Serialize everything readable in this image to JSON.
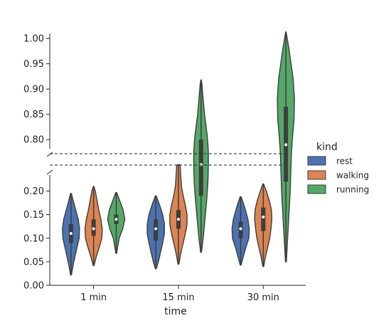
{
  "chart_data": {
    "type": "violin",
    "categories": [
      "1 min",
      "15 min",
      "30 min"
    ],
    "xlabel": "time",
    "ylabel": "",
    "legend_title": "kind",
    "legend_position": "right",
    "broken_y_axis": true,
    "axes": {
      "upper": {
        "ylim": [
          0.775,
          1.01
        ],
        "ticks": [
          "0.80",
          "0.85",
          "0.90",
          "0.95",
          "1.00"
        ]
      },
      "lower": {
        "ylim": [
          0.0,
          0.225
        ],
        "ticks": [
          "0.00",
          "0.05",
          "0.10",
          "0.15",
          "0.20"
        ]
      }
    },
    "series": [
      {
        "name": "rest",
        "color": "#4c72b0",
        "violins": [
          {
            "category": "1 min",
            "min": 0.022,
            "max": 0.195,
            "q1": 0.09,
            "median": 0.11,
            "q3": 0.13,
            "profile": [
              [
                0.022,
                0.05
              ],
              [
                0.04,
                0.22
              ],
              [
                0.06,
                0.45
              ],
              [
                0.08,
                0.7
              ],
              [
                0.1,
                0.95
              ],
              [
                0.12,
                1.0
              ],
              [
                0.14,
                0.85
              ],
              [
                0.16,
                0.55
              ],
              [
                0.18,
                0.25
              ],
              [
                0.195,
                0.05
              ]
            ]
          },
          {
            "category": "15 min",
            "min": 0.035,
            "max": 0.19,
            "q1": 0.095,
            "median": 0.12,
            "q3": 0.14,
            "profile": [
              [
                0.035,
                0.05
              ],
              [
                0.05,
                0.3
              ],
              [
                0.07,
                0.55
              ],
              [
                0.09,
                0.8
              ],
              [
                0.11,
                1.0
              ],
              [
                0.13,
                1.0
              ],
              [
                0.15,
                0.8
              ],
              [
                0.17,
                0.45
              ],
              [
                0.19,
                0.05
              ]
            ]
          },
          {
            "category": "30 min",
            "min": 0.043,
            "max": 0.188,
            "q1": 0.1,
            "median": 0.12,
            "q3": 0.135,
            "profile": [
              [
                0.043,
                0.05
              ],
              [
                0.06,
                0.3
              ],
              [
                0.08,
                0.6
              ],
              [
                0.1,
                0.95
              ],
              [
                0.12,
                1.0
              ],
              [
                0.14,
                0.85
              ],
              [
                0.16,
                0.55
              ],
              [
                0.175,
                0.3
              ],
              [
                0.188,
                0.05
              ]
            ]
          }
        ]
      },
      {
        "name": "walking",
        "color": "#dd8452",
        "violins": [
          {
            "category": "1 min",
            "min": 0.042,
            "max": 0.21,
            "q1": 0.105,
            "median": 0.12,
            "q3": 0.14,
            "profile": [
              [
                0.042,
                0.05
              ],
              [
                0.06,
                0.3
              ],
              [
                0.08,
                0.65
              ],
              [
                0.1,
                0.95
              ],
              [
                0.12,
                1.0
              ],
              [
                0.14,
                0.85
              ],
              [
                0.16,
                0.6
              ],
              [
                0.18,
                0.4
              ],
              [
                0.2,
                0.2
              ],
              [
                0.21,
                0.03
              ]
            ]
          },
          {
            "category": "15 min",
            "min": 0.045,
            "max": 0.25,
            "q1": 0.12,
            "median": 0.14,
            "q3": 0.16,
            "profile": [
              [
                0.045,
                0.05
              ],
              [
                0.07,
                0.3
              ],
              [
                0.09,
                0.55
              ],
              [
                0.11,
                0.8
              ],
              [
                0.13,
                1.0
              ],
              [
                0.15,
                1.0
              ],
              [
                0.17,
                0.8
              ],
              [
                0.19,
                0.55
              ],
              [
                0.21,
                0.35
              ],
              [
                0.23,
                0.2
              ],
              [
                0.25,
                0.05
              ]
            ]
          },
          {
            "category": "30 min",
            "min": 0.04,
            "max": 0.215,
            "q1": 0.115,
            "median": 0.145,
            "q3": 0.165,
            "profile": [
              [
                0.04,
                0.05
              ],
              [
                0.06,
                0.25
              ],
              [
                0.08,
                0.5
              ],
              [
                0.1,
                0.75
              ],
              [
                0.12,
                0.9
              ],
              [
                0.14,
                1.0
              ],
              [
                0.16,
                0.95
              ],
              [
                0.18,
                0.7
              ],
              [
                0.2,
                0.35
              ],
              [
                0.215,
                0.05
              ]
            ]
          }
        ]
      },
      {
        "name": "running",
        "color": "#55a868",
        "violins": [
          {
            "category": "1 min",
            "min": 0.068,
            "max": 0.197,
            "q1": 0.13,
            "median": 0.14,
            "q3": 0.15,
            "profile": [
              [
                0.068,
                0.05
              ],
              [
                0.08,
                0.15
              ],
              [
                0.1,
                0.35
              ],
              [
                0.12,
                0.75
              ],
              [
                0.14,
                1.0
              ],
              [
                0.16,
                0.8
              ],
              [
                0.18,
                0.4
              ],
              [
                0.197,
                0.05
              ]
            ]
          },
          {
            "category": "15 min",
            "min": 0.07,
            "max": 0.918,
            "q1": 0.19,
            "median": 0.245,
            "q3": 0.8,
            "profile": [
              [
                0.07,
                0.05
              ],
              [
                0.1,
                0.25
              ],
              [
                0.14,
                0.45
              ],
              [
                0.18,
                0.65
              ],
              [
                0.22,
                0.8
              ],
              [
                0.26,
                0.85
              ],
              [
                0.775,
                0.85
              ],
              [
                0.79,
                0.8
              ],
              [
                0.81,
                0.7
              ],
              [
                0.83,
                0.55
              ],
              [
                0.85,
                0.4
              ],
              [
                0.87,
                0.3
              ],
              [
                0.89,
                0.2
              ],
              [
                0.91,
                0.1
              ],
              [
                0.918,
                0.03
              ]
            ]
          },
          {
            "category": "30 min",
            "min": 0.05,
            "max": 1.013,
            "q1": 0.22,
            "median": 0.79,
            "q3": 0.865,
            "profile": [
              [
                0.05,
                0.05
              ],
              [
                0.1,
                0.2
              ],
              [
                0.15,
                0.35
              ],
              [
                0.2,
                0.5
              ],
              [
                0.25,
                0.6
              ],
              [
                0.775,
                0.65
              ],
              [
                0.8,
                0.75
              ],
              [
                0.84,
                0.95
              ],
              [
                0.88,
                1.0
              ],
              [
                0.92,
                0.85
              ],
              [
                0.95,
                0.6
              ],
              [
                0.98,
                0.35
              ],
              [
                1.0,
                0.15
              ],
              [
                1.013,
                0.03
              ]
            ]
          }
        ]
      }
    ]
  }
}
